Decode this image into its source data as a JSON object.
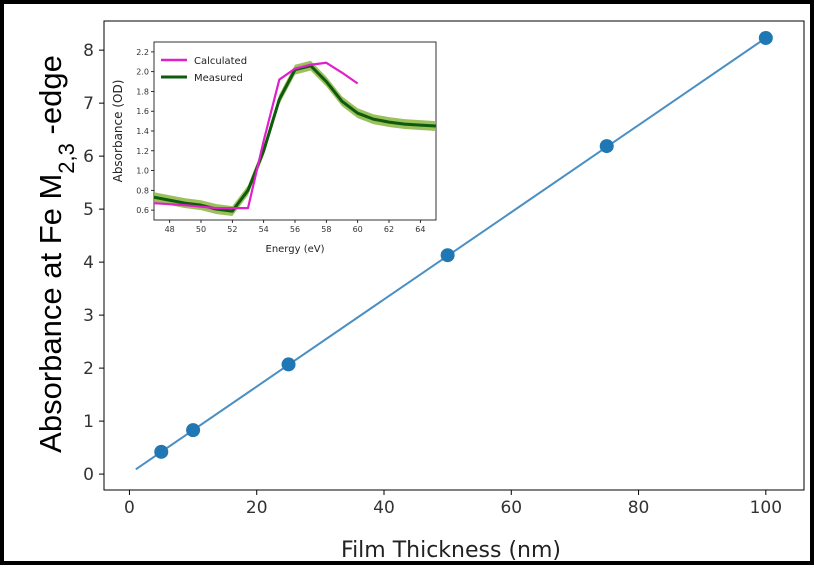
{
  "chart_data": [
    {
      "type": "line",
      "xlabel": "Film Thickness (nm)",
      "ylabel_main": "Absorbance at Fe M",
      "ylabel_sub": "2,3",
      "ylabel_tail": " -edge",
      "xlim": [
        -4,
        106
      ],
      "ylim": [
        -0.3,
        8.55
      ],
      "xticks": [
        0,
        20,
        40,
        60,
        80,
        100
      ],
      "yticks": [
        0,
        1,
        2,
        3,
        4,
        5,
        6,
        7,
        8
      ],
      "grid": false,
      "series": [
        {
          "color": "#1f77b4",
          "points": [
            [
              5,
              0.42
            ],
            [
              10,
              0.83
            ],
            [
              25,
              2.07
            ],
            [
              50,
              4.13
            ],
            [
              75,
              6.19
            ],
            [
              100,
              8.23
            ]
          ]
        },
        {
          "color": "#4a8fc4",
          "fit_line": [
            [
              1,
              0.09
            ],
            [
              100,
              8.23
            ]
          ]
        }
      ]
    },
    {
      "type": "line",
      "xlabel": "Energy (eV)",
      "ylabel": "Absorbance (OD)",
      "xlim": [
        47,
        65
      ],
      "ylim": [
        0.5,
        2.3
      ],
      "xticks": [
        48,
        50,
        52,
        54,
        56,
        58,
        60,
        62,
        64
      ],
      "yticks": [
        0.6,
        0.8,
        1.0,
        1.2,
        1.4,
        1.6,
        1.8,
        2.0,
        2.2
      ],
      "ytick_labels": [
        "0.6",
        "0.8",
        "1.0",
        "1.2",
        "1.4",
        "1.6",
        "1.8",
        "2.0",
        "2.2"
      ],
      "legend_position": "top-left",
      "series": [
        {
          "name": "Calculated",
          "color": "#e020c8",
          "x": [
            47,
            49,
            51,
            52,
            53,
            54,
            55,
            56,
            57,
            58,
            59,
            60
          ],
          "y": [
            0.67,
            0.65,
            0.62,
            0.62,
            0.62,
            1.3,
            1.92,
            2.03,
            2.07,
            2.09,
            1.99,
            1.88
          ]
        },
        {
          "name": "Measured",
          "color": "#0d5c0d",
          "band_color": "#8ab540",
          "x": [
            47,
            48,
            49,
            50,
            51,
            52,
            53,
            54,
            55,
            56,
            57,
            58,
            59,
            60,
            61,
            62,
            63,
            64,
            65
          ],
          "y": [
            0.73,
            0.7,
            0.67,
            0.65,
            0.61,
            0.59,
            0.8,
            1.2,
            1.72,
            2.02,
            2.06,
            1.9,
            1.7,
            1.58,
            1.52,
            1.49,
            1.47,
            1.46,
            1.45
          ]
        }
      ]
    }
  ]
}
